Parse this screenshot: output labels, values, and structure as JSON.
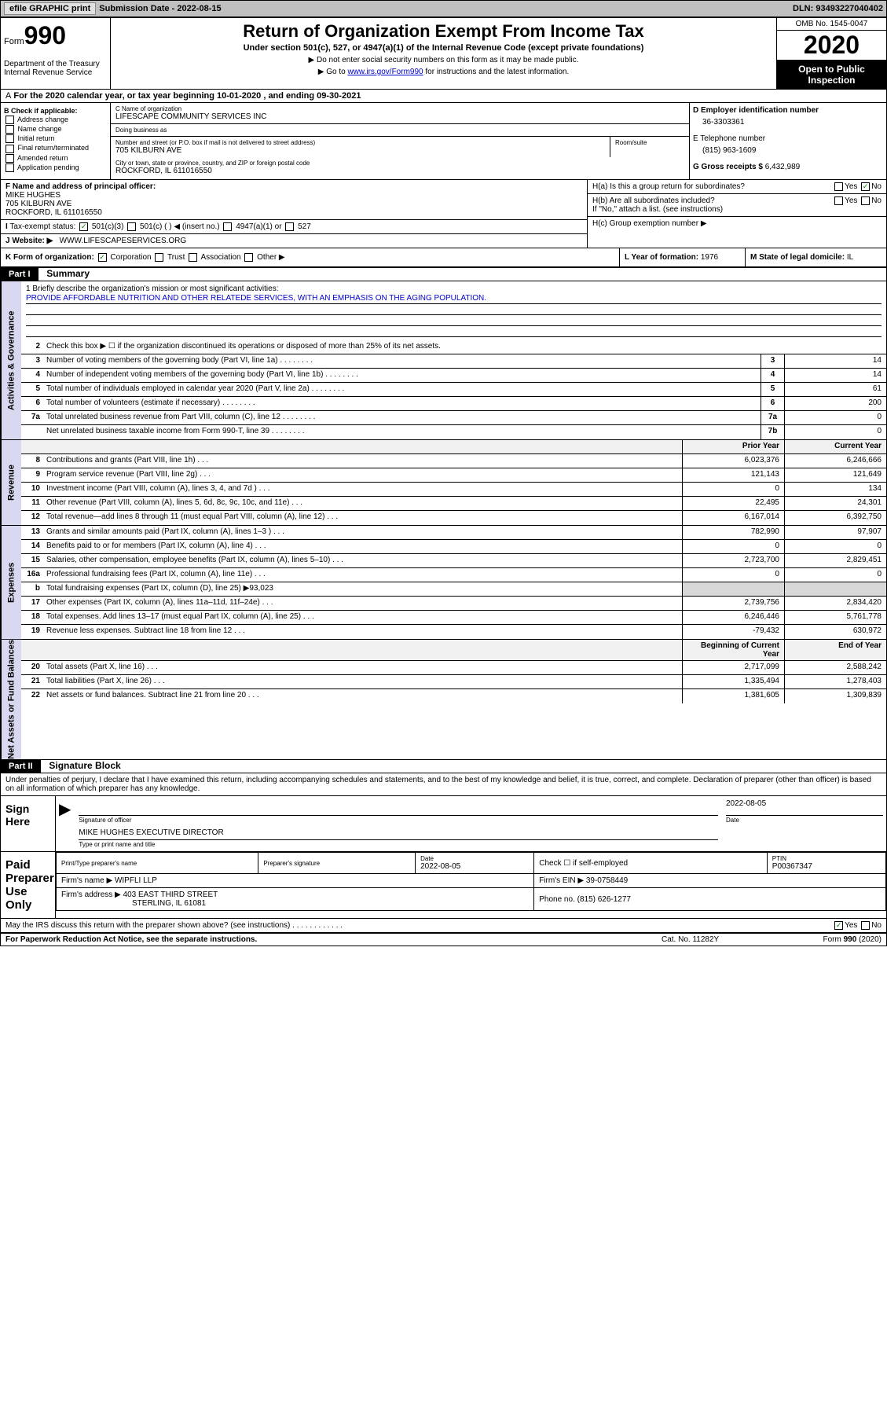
{
  "topbar": {
    "efile": "efile GRAPHIC print",
    "submission_label": "Submission Date",
    "submission_date": "2022-08-15",
    "dln": "DLN: 93493227040402"
  },
  "header": {
    "form_prefix": "Form",
    "form_number": "990",
    "dept": "Department of the Treasury Internal Revenue Service",
    "title": "Return of Organization Exempt From Income Tax",
    "subtitle": "Under section 501(c), 527, or 4947(a)(1) of the Internal Revenue Code (except private foundations)",
    "note1": "▶ Do not enter social security numbers on this form as it may be made public.",
    "note2_prefix": "▶ Go to ",
    "note2_link": "www.irs.gov/Form990",
    "note2_suffix": " for instructions and the latest information.",
    "omb": "OMB No. 1545-0047",
    "year": "2020",
    "inspection": "Open to Public Inspection"
  },
  "line_a": "For the 2020 calendar year, or tax year beginning 10-01-2020   , and ending 09-30-2021",
  "box_b": {
    "label": "B Check if applicable:",
    "items": [
      "Address change",
      "Name change",
      "Initial return",
      "Final return/terminated",
      "Amended return",
      "Application pending"
    ]
  },
  "box_c": {
    "name_label": "C Name of organization",
    "name": "LIFESCAPE COMMUNITY SERVICES INC",
    "dba_label": "Doing business as",
    "dba": "",
    "addr_label": "Number and street (or P.O. box if mail is not delivered to street address)",
    "room_label": "Room/suite",
    "addr": "705 KILBURN AVE",
    "city_label": "City or town, state or province, country, and ZIP or foreign postal code",
    "city": "ROCKFORD, IL  611016550"
  },
  "box_d": {
    "ein_label": "D Employer identification number",
    "ein": "36-3303361",
    "tel_label": "E Telephone number",
    "tel": "(815) 963-1609",
    "gross_label": "G Gross receipts $",
    "gross": "6,432,989"
  },
  "box_f": {
    "label": "F Name and address of principal officer:",
    "name": "MIKE HUGHES",
    "addr1": "705 KILBURN AVE",
    "addr2": "ROCKFORD, IL  611016550"
  },
  "box_h": {
    "ha": "H(a)  Is this a group return for subordinates?",
    "hb": "H(b)  Are all subordinates included?",
    "hb_note": "If \"No,\" attach a list. (see instructions)",
    "hc": "H(c)  Group exemption number ▶"
  },
  "box_i": {
    "label": "Tax-exempt status:",
    "opts": [
      "501(c)(3)",
      "501(c) (  ) ◀ (insert no.)",
      "4947(a)(1) or",
      "527"
    ]
  },
  "box_j": {
    "label": "J  Website: ▶",
    "value": "WWW.LIFESCAPESERVICES.ORG"
  },
  "box_k": {
    "label": "K Form of organization:",
    "opts": [
      "Corporation",
      "Trust",
      "Association",
      "Other ▶"
    ],
    "l_label": "L Year of formation:",
    "l_val": "1976",
    "m_label": "M State of legal domicile:",
    "m_val": "IL"
  },
  "part1": {
    "label": "Part I",
    "title": "Summary"
  },
  "summary": {
    "q1_label": "1   Briefly describe the organization's mission or most significant activities:",
    "q1_text": "PROVIDE AFFORDABLE NUTRITION AND OTHER RELATEDE SERVICES, WITH AN EMPHASIS ON THE AGING POPULATION.",
    "q2": "Check this box ▶ ☐  if the organization discontinued its operations or disposed of more than 25% of its net assets.",
    "tabs": {
      "gov": "Activities & Governance",
      "rev": "Revenue",
      "exp": "Expenses",
      "net": "Net Assets or Fund Balances"
    },
    "gov_lines": [
      {
        "n": "3",
        "t": "Number of voting members of the governing body (Part VI, line 1a)",
        "box": "3",
        "v": "14"
      },
      {
        "n": "4",
        "t": "Number of independent voting members of the governing body (Part VI, line 1b)",
        "box": "4",
        "v": "14"
      },
      {
        "n": "5",
        "t": "Total number of individuals employed in calendar year 2020 (Part V, line 2a)",
        "box": "5",
        "v": "61"
      },
      {
        "n": "6",
        "t": "Total number of volunteers (estimate if necessary)",
        "box": "6",
        "v": "200"
      },
      {
        "n": "7a",
        "t": "Total unrelated business revenue from Part VIII, column (C), line 12",
        "box": "7a",
        "v": "0"
      },
      {
        "n": "",
        "t": "Net unrelated business taxable income from Form 990-T, line 39",
        "box": "7b",
        "v": "0"
      }
    ],
    "col_headers": {
      "prior": "Prior Year",
      "current": "Current Year",
      "begin": "Beginning of Current Year",
      "end": "End of Year"
    },
    "rev_lines": [
      {
        "n": "8",
        "t": "Contributions and grants (Part VIII, line 1h)",
        "p": "6,023,376",
        "c": "6,246,666"
      },
      {
        "n": "9",
        "t": "Program service revenue (Part VIII, line 2g)",
        "p": "121,143",
        "c": "121,649"
      },
      {
        "n": "10",
        "t": "Investment income (Part VIII, column (A), lines 3, 4, and 7d )",
        "p": "0",
        "c": "134"
      },
      {
        "n": "11",
        "t": "Other revenue (Part VIII, column (A), lines 5, 6d, 8c, 9c, 10c, and 11e)",
        "p": "22,495",
        "c": "24,301"
      },
      {
        "n": "12",
        "t": "Total revenue—add lines 8 through 11 (must equal Part VIII, column (A), line 12)",
        "p": "6,167,014",
        "c": "6,392,750"
      }
    ],
    "exp_lines": [
      {
        "n": "13",
        "t": "Grants and similar amounts paid (Part IX, column (A), lines 1–3 )",
        "p": "782,990",
        "c": "97,907"
      },
      {
        "n": "14",
        "t": "Benefits paid to or for members (Part IX, column (A), line 4)",
        "p": "0",
        "c": "0"
      },
      {
        "n": "15",
        "t": "Salaries, other compensation, employee benefits (Part IX, column (A), lines 5–10)",
        "p": "2,723,700",
        "c": "2,829,451"
      },
      {
        "n": "16a",
        "t": "Professional fundraising fees (Part IX, column (A), line 11e)",
        "p": "0",
        "c": "0"
      },
      {
        "n": "b",
        "t": "Total fundraising expenses (Part IX, column (D), line 25) ▶93,023",
        "p": "",
        "c": "",
        "shade": true
      },
      {
        "n": "17",
        "t": "Other expenses (Part IX, column (A), lines 11a–11d, 11f–24e)",
        "p": "2,739,756",
        "c": "2,834,420"
      },
      {
        "n": "18",
        "t": "Total expenses. Add lines 13–17 (must equal Part IX, column (A), line 25)",
        "p": "6,246,446",
        "c": "5,761,778"
      },
      {
        "n": "19",
        "t": "Revenue less expenses. Subtract line 18 from line 12",
        "p": "-79,432",
        "c": "630,972"
      }
    ],
    "net_lines": [
      {
        "n": "20",
        "t": "Total assets (Part X, line 16)",
        "p": "2,717,099",
        "c": "2,588,242"
      },
      {
        "n": "21",
        "t": "Total liabilities (Part X, line 26)",
        "p": "1,335,494",
        "c": "1,278,403"
      },
      {
        "n": "22",
        "t": "Net assets or fund balances. Subtract line 21 from line 20",
        "p": "1,381,605",
        "c": "1,309,839"
      }
    ]
  },
  "part2": {
    "label": "Part II",
    "title": "Signature Block",
    "penalty": "Under penalties of perjury, I declare that I have examined this return, including accompanying schedules and statements, and to the best of my knowledge and belief, it is true, correct, and complete. Declaration of preparer (other than officer) is based on all information of which preparer has any knowledge."
  },
  "sign": {
    "label": "Sign Here",
    "sig_label": "Signature of officer",
    "date_label": "Date",
    "date": "2022-08-05",
    "name": "MIKE HUGHES  EXECUTIVE DIRECTOR",
    "name_label": "Type or print name and title"
  },
  "preparer": {
    "label": "Paid Preparer Use Only",
    "print_label": "Print/Type preparer's name",
    "sig_label": "Preparer's signature",
    "date_label": "Date",
    "date": "2022-08-05",
    "check_label": "Check ☐ if self-employed",
    "ptin_label": "PTIN",
    "ptin": "P00367347",
    "firm_name_label": "Firm's name    ▶",
    "firm_name": "WIPFLI LLP",
    "firm_ein_label": "Firm's EIN ▶",
    "firm_ein": "39-0758449",
    "firm_addr_label": "Firm's address ▶",
    "firm_addr1": "403 EAST THIRD STREET",
    "firm_addr2": "STERLING, IL  61081",
    "phone_label": "Phone no.",
    "phone": "(815) 626-1277"
  },
  "discuss": "May the IRS discuss this return with the preparer shown above? (see instructions)",
  "footer": {
    "left": "For Paperwork Reduction Act Notice, see the separate instructions.",
    "mid": "Cat. No. 11282Y",
    "right": "Form 990 (2020)"
  }
}
